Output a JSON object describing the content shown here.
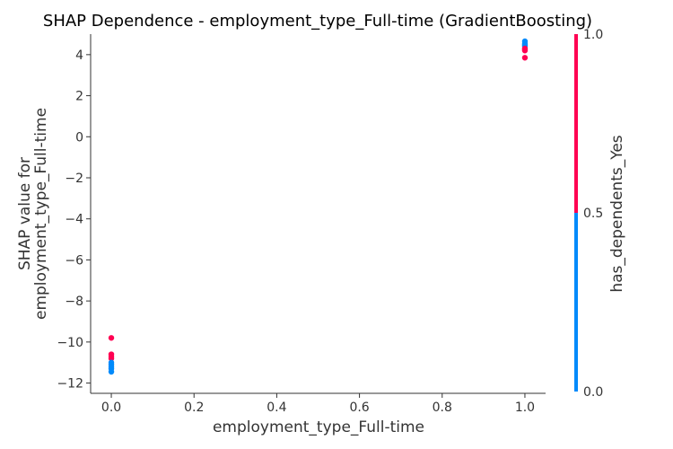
{
  "chart_data": {
    "type": "scatter",
    "title": "SHAP Dependence - employment_type_Full-time (GradientBoosting)",
    "xlabel": "employment_type_Full-time",
    "ylabel_lines": [
      "SHAP value for",
      "employment_type_Full-time"
    ],
    "xlim": [
      -0.05,
      1.05
    ],
    "ylim": [
      -12.5,
      5.0
    ],
    "x_ticks": [
      0.0,
      0.2,
      0.4,
      0.6,
      0.8,
      1.0
    ],
    "x_tick_labels": [
      "0.0",
      "0.2",
      "0.4",
      "0.6",
      "0.8",
      "1.0"
    ],
    "y_ticks": [
      -12,
      -10,
      -8,
      -6,
      -4,
      -2,
      0,
      2,
      4
    ],
    "y_tick_labels": [
      "−12",
      "−10",
      "−8",
      "−6",
      "−4",
      "−2",
      "0",
      "2",
      "4"
    ],
    "grid": false,
    "colorbar": {
      "label": "has_dependents_Yes",
      "ticks": [
        0.0,
        0.5,
        1.0
      ],
      "tick_labels": [
        "0.0",
        "0.5",
        "1.0"
      ],
      "low_color": "#008afb",
      "high_color": "#ff0052"
    },
    "points": [
      {
        "x": 0.0,
        "y": -9.8,
        "c": 1
      },
      {
        "x": 0.0,
        "y": -10.6,
        "c": 1
      },
      {
        "x": 0.0,
        "y": -10.7,
        "c": 1
      },
      {
        "x": 0.0,
        "y": -10.8,
        "c": 1
      },
      {
        "x": 0.0,
        "y": -11.0,
        "c": 0
      },
      {
        "x": 0.0,
        "y": -11.1,
        "c": 0
      },
      {
        "x": 0.0,
        "y": -11.2,
        "c": 0
      },
      {
        "x": 0.0,
        "y": -11.3,
        "c": 0
      },
      {
        "x": 0.0,
        "y": -11.45,
        "c": 0
      },
      {
        "x": 1.0,
        "y": 4.65,
        "c": 0
      },
      {
        "x": 1.0,
        "y": 4.55,
        "c": 0
      },
      {
        "x": 1.0,
        "y": 4.5,
        "c": 0
      },
      {
        "x": 1.0,
        "y": 4.45,
        "c": 0
      },
      {
        "x": 1.0,
        "y": 4.4,
        "c": 0
      },
      {
        "x": 1.0,
        "y": 4.3,
        "c": 1
      },
      {
        "x": 1.0,
        "y": 4.25,
        "c": 1
      },
      {
        "x": 1.0,
        "y": 4.2,
        "c": 1
      },
      {
        "x": 1.0,
        "y": 3.85,
        "c": 1
      }
    ]
  }
}
